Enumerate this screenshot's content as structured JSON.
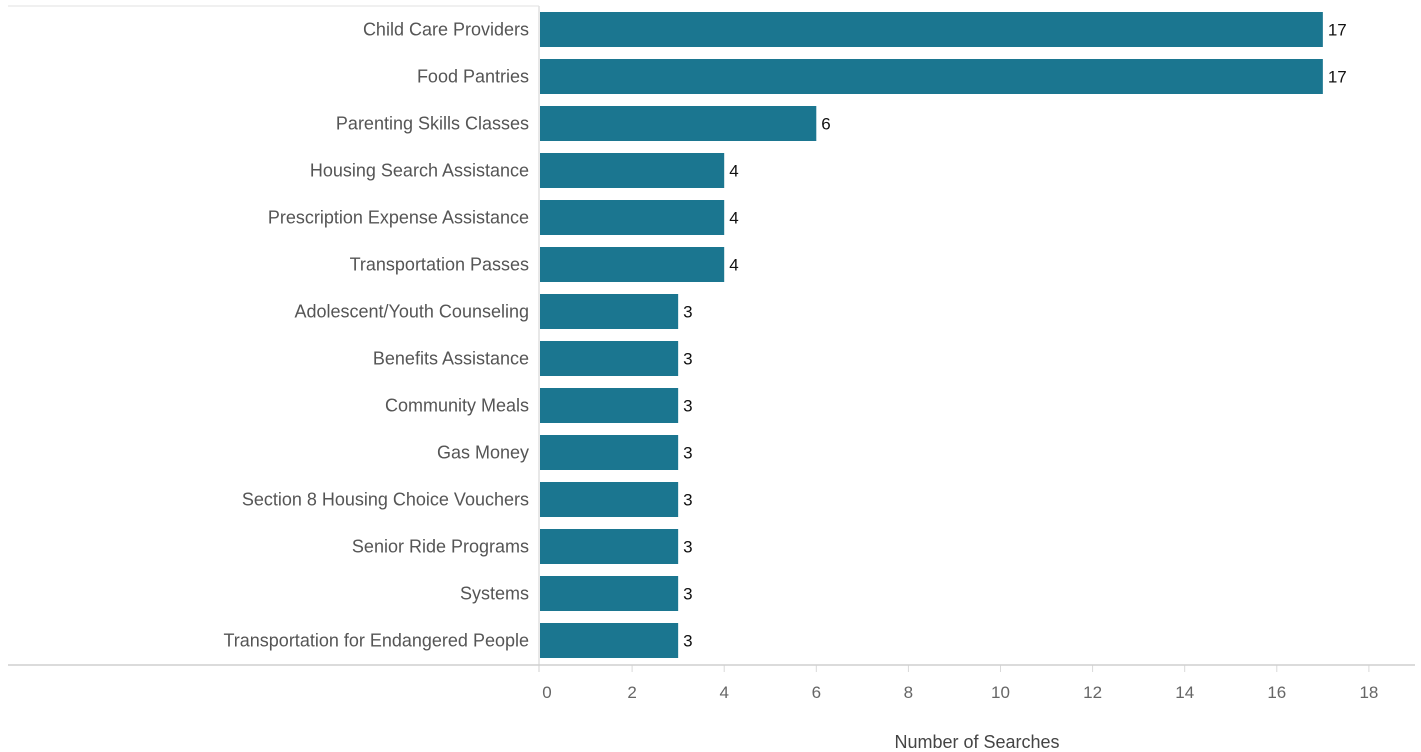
{
  "chart_data": {
    "type": "bar",
    "orientation": "horizontal",
    "categories": [
      "Child Care Providers",
      "Food Pantries",
      "Parenting Skills Classes",
      "Housing Search Assistance",
      "Prescription Expense Assistance",
      "Transportation Passes",
      "Adolescent/Youth Counseling",
      "Benefits Assistance",
      "Community Meals",
      "Gas Money",
      "Section 8 Housing Choice Vouchers",
      "Senior Ride Programs",
      "Systems",
      "Transportation for Endangered People"
    ],
    "values": [
      17,
      17,
      6,
      4,
      4,
      4,
      3,
      3,
      3,
      3,
      3,
      3,
      3,
      3
    ],
    "xlabel": "Number of Searches",
    "ylabel": "",
    "xlim": [
      0,
      18
    ],
    "xticks": [
      0,
      2,
      4,
      6,
      8,
      10,
      12,
      14,
      16,
      18
    ],
    "bar_color": "#1b7690",
    "gridlines": "vertical",
    "legend": "none",
    "data_labels": true
  }
}
